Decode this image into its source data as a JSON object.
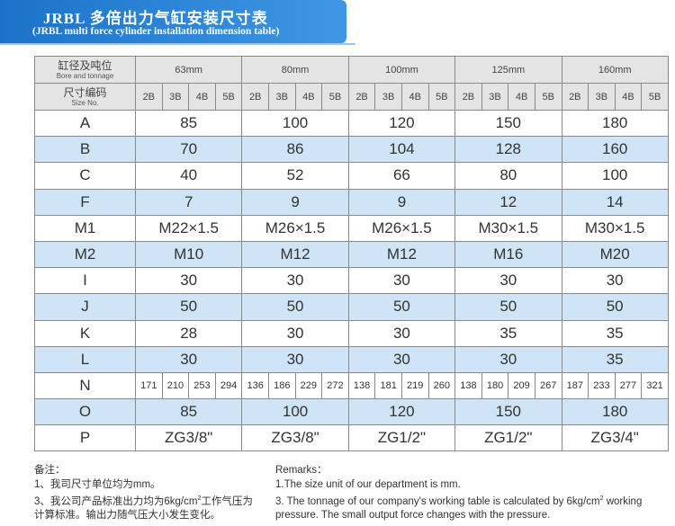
{
  "header": {
    "title": "JRBL 多倍出力气缸安装尺寸表",
    "subtitle": "(JRBL multi force cylinder installation dimension table)"
  },
  "table": {
    "corner_top_cn": "缸径及吨位",
    "corner_top_en": "Bore and tonnage",
    "corner_bottom_cn": "尺寸编码",
    "corner_bottom_en": "Size No.",
    "bores": [
      "63mm",
      "80mm",
      "100mm",
      "125mm",
      "160mm"
    ],
    "tonnages": [
      "2B",
      "3B",
      "4B",
      "5B"
    ],
    "rows": [
      {
        "label": "A",
        "values": [
          85,
          100,
          120,
          150,
          180
        ]
      },
      {
        "label": "B",
        "values": [
          70,
          86,
          104,
          128,
          160
        ]
      },
      {
        "label": "C",
        "values": [
          40,
          52,
          66,
          80,
          100
        ]
      },
      {
        "label": "F",
        "values": [
          7,
          9,
          9,
          12,
          14
        ]
      },
      {
        "label": "M1",
        "values": [
          "M22×1.5",
          "M26×1.5",
          "M26×1.5",
          "M30×1.5",
          "M30×1.5"
        ]
      },
      {
        "label": "M2",
        "values": [
          "M10",
          "M12",
          "M12",
          "M16",
          "M20"
        ]
      },
      {
        "label": "I",
        "values": [
          30,
          30,
          30,
          30,
          30
        ]
      },
      {
        "label": "J",
        "values": [
          50,
          50,
          50,
          50,
          50
        ]
      },
      {
        "label": "K",
        "values": [
          28,
          30,
          30,
          35,
          35
        ]
      },
      {
        "label": "L",
        "values": [
          30,
          30,
          30,
          30,
          35
        ]
      },
      {
        "label": "N",
        "values": [
          171,
          210,
          253,
          294,
          136,
          186,
          229,
          272,
          138,
          181,
          219,
          260,
          138,
          180,
          209,
          267,
          187,
          233,
          277,
          321
        ]
      },
      {
        "label": "O",
        "values": [
          85,
          100,
          120,
          150,
          180
        ]
      },
      {
        "label": "P",
        "values": [
          "ZG3/8\"",
          "ZG3/8\"",
          "ZG1/2\"",
          "ZG1/2\"",
          "ZG3/4\""
        ]
      }
    ]
  },
  "notes_cn": {
    "title": "备注：",
    "lines": [
      {
        "text": "1、我司尺寸单位均为mm。"
      },
      {
        "text": "3、我公司产品标准出力均为6kg/cm",
        "sup": "2",
        "after": "工作气压为计算标准。输出力随气压大小发生变化。"
      }
    ]
  },
  "notes_en": {
    "title": "Remarks：",
    "lines": [
      {
        "text": "1.The size unit of our department is mm."
      },
      {
        "text": "3. The tonnage of our company's working table is calculated by 6kg/cm",
        "sup": "2",
        "after": " working pressure. The small output force changes with the pressure."
      }
    ]
  }
}
